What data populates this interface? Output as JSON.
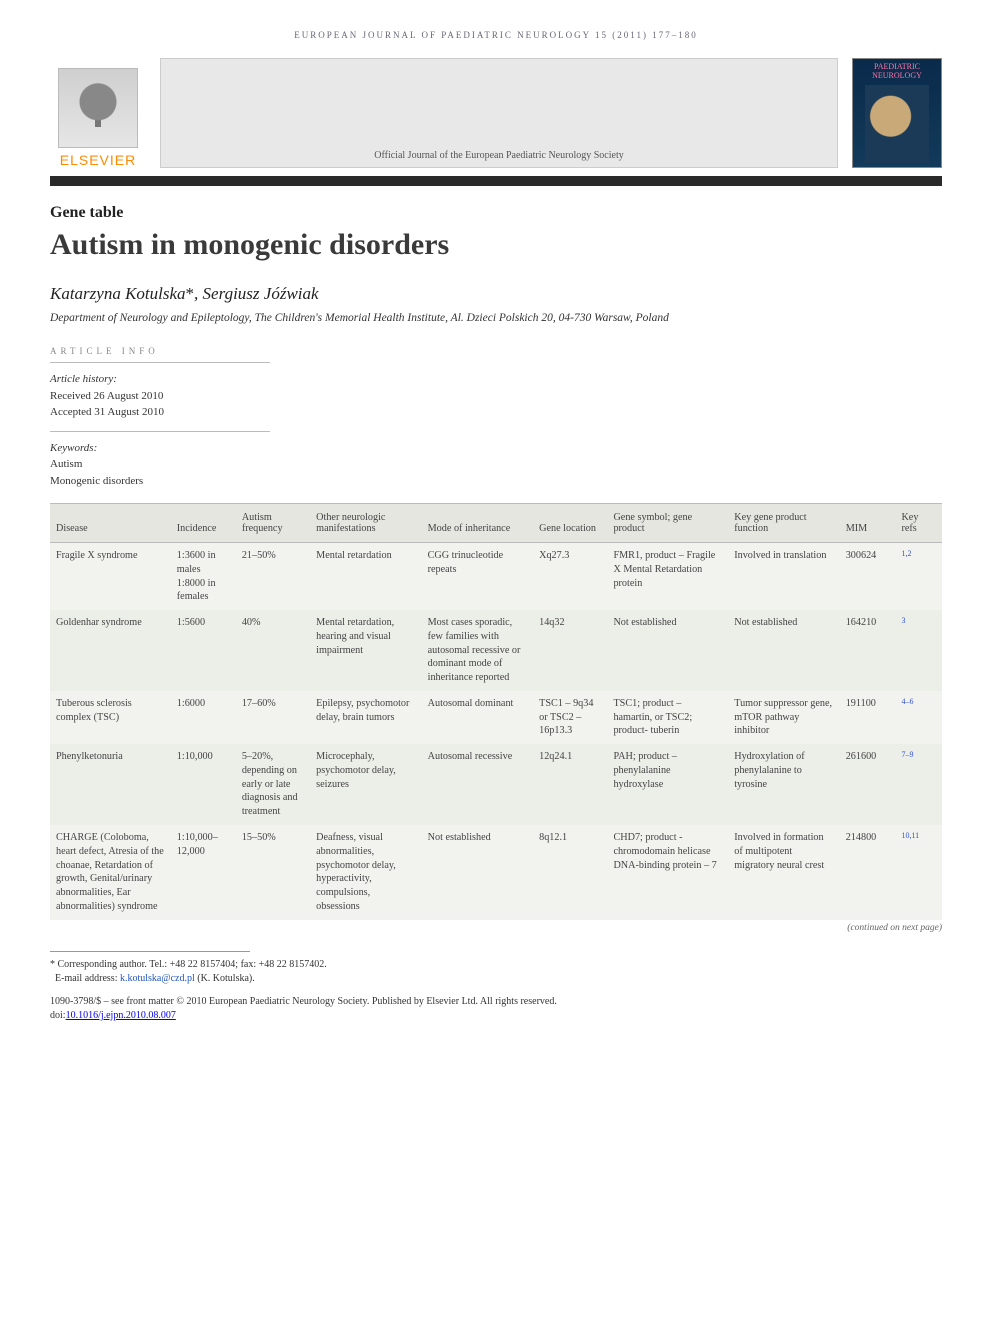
{
  "running_head": "EUROPEAN JOURNAL OF PAEDIATRIC NEUROLOGY 15 (2011) 177–180",
  "publisher_logo_text": "ELSEVIER",
  "official_journal_line": "Official Journal of the European Paediatric Neurology Society",
  "cover_title": "PAEDIATRIC NEUROLOGY",
  "section_label": "Gene table",
  "title": "Autism in monogenic disorders",
  "authors_html": "Katarzyna Kotulska*, Sergiusz Jóźwiak",
  "author1": "Katarzyna Kotulska",
  "author2": "Sergiusz Jóźwiak",
  "affiliation": "Department of Neurology and Epileptology, The Children's Memorial Health Institute, Al. Dzieci Polskich 20, 04-730 Warsaw, Poland",
  "article_info_head": "ARTICLE INFO",
  "history_label": "Article history:",
  "received": "Received 26 August 2010",
  "accepted": "Accepted 31 August 2010",
  "keywords_label": "Keywords:",
  "keywords": [
    "Autism",
    "Monogenic disorders"
  ],
  "table": {
    "headers": [
      "Disease",
      "Incidence",
      "Autism frequency",
      "Other neurologic manifestations",
      "Mode of inheritance",
      "Gene location",
      "Gene symbol; gene product",
      "Key gene product function",
      "MIM",
      "Key refs"
    ],
    "col_widths_pct": [
      13,
      7,
      8,
      12,
      12,
      8,
      13,
      12,
      6,
      5
    ],
    "rows": [
      {
        "alt": false,
        "cells": [
          "Fragile X syndrome",
          "1:3600 in males 1:8000 in females",
          "21–50%",
          "Mental retardation",
          "CGG trinucleotide repeats",
          "Xq27.3",
          "FMR1, product – Fragile X Mental Retardation protein",
          "Involved in translation",
          "300624",
          "1,2"
        ]
      },
      {
        "alt": true,
        "cells": [
          "Goldenhar syndrome",
          "1:5600",
          "40%",
          "Mental retardation, hearing and visual impairment",
          "Most cases sporadic, few families with autosomal recessive or dominant mode of inheritance reported",
          "14q32",
          "Not established",
          "Not established",
          "164210",
          "3"
        ]
      },
      {
        "alt": false,
        "cells": [
          "Tuberous sclerosis complex (TSC)",
          "1:6000",
          "17–60%",
          "Epilepsy, psychomotor delay, brain tumors",
          "Autosomal dominant",
          "TSC1 – 9q34 or TSC2 – 16p13.3",
          "TSC1; product – hamartin, or TSC2; product- tuberin",
          "Tumor suppressor gene, mTOR pathway inhibitor",
          "191100",
          "4–6"
        ]
      },
      {
        "alt": true,
        "cells": [
          "Phenylketonuria",
          "1:10,000",
          "5–20%, depending on early or late diagnosis and treatment",
          "Microcephaly, psychomotor delay, seizures",
          "Autosomal recessive",
          "12q24.1",
          "PAH; product – phenylalanine hydroxylase",
          "Hydroxylation of phenylalanine to tyrosine",
          "261600",
          "7–9"
        ]
      },
      {
        "alt": false,
        "cells": [
          "CHARGE (Coloboma, heart defect, Atresia of the choanae, Retardation of growth, Genital/urinary abnormalities, Ear abnormalities) syndrome",
          "1:10,000–12,000",
          "15–50%",
          "Deafness, visual abnormalities, psychomotor delay, hyperactivity, compulsions, obsessions",
          "Not established",
          "8q12.1",
          "CHD7; product - chromodomain helicase DNA-binding protein – 7",
          "Involved in formation of multipotent migratory neural crest",
          "214800",
          "10,11"
        ]
      }
    ],
    "continued": "(continued on next page)"
  },
  "footnote": {
    "corresponding_label": "* Corresponding author.",
    "tel": "Tel.: +48 22 8157404; fax: +48 22 8157402.",
    "email_label": "E-mail address:",
    "email": "k.kotulska@czd.pl",
    "email_name": "(K. Kotulska)."
  },
  "copyright_line1": "1090-3798/$ – see front matter © 2010 European Paediatric Neurology Society. Published by Elsevier Ltd. All rights reserved.",
  "doi_label": "doi:",
  "doi": "10.1016/j.ejpn.2010.08.007",
  "colors": {
    "link": "#2255bb",
    "header_bg": "#e6e6e1",
    "table_bg": "#f2f2ef",
    "alt_row": "#eceee8",
    "rule": "#2a2a2a",
    "logo_orange": "#ff8a00"
  }
}
